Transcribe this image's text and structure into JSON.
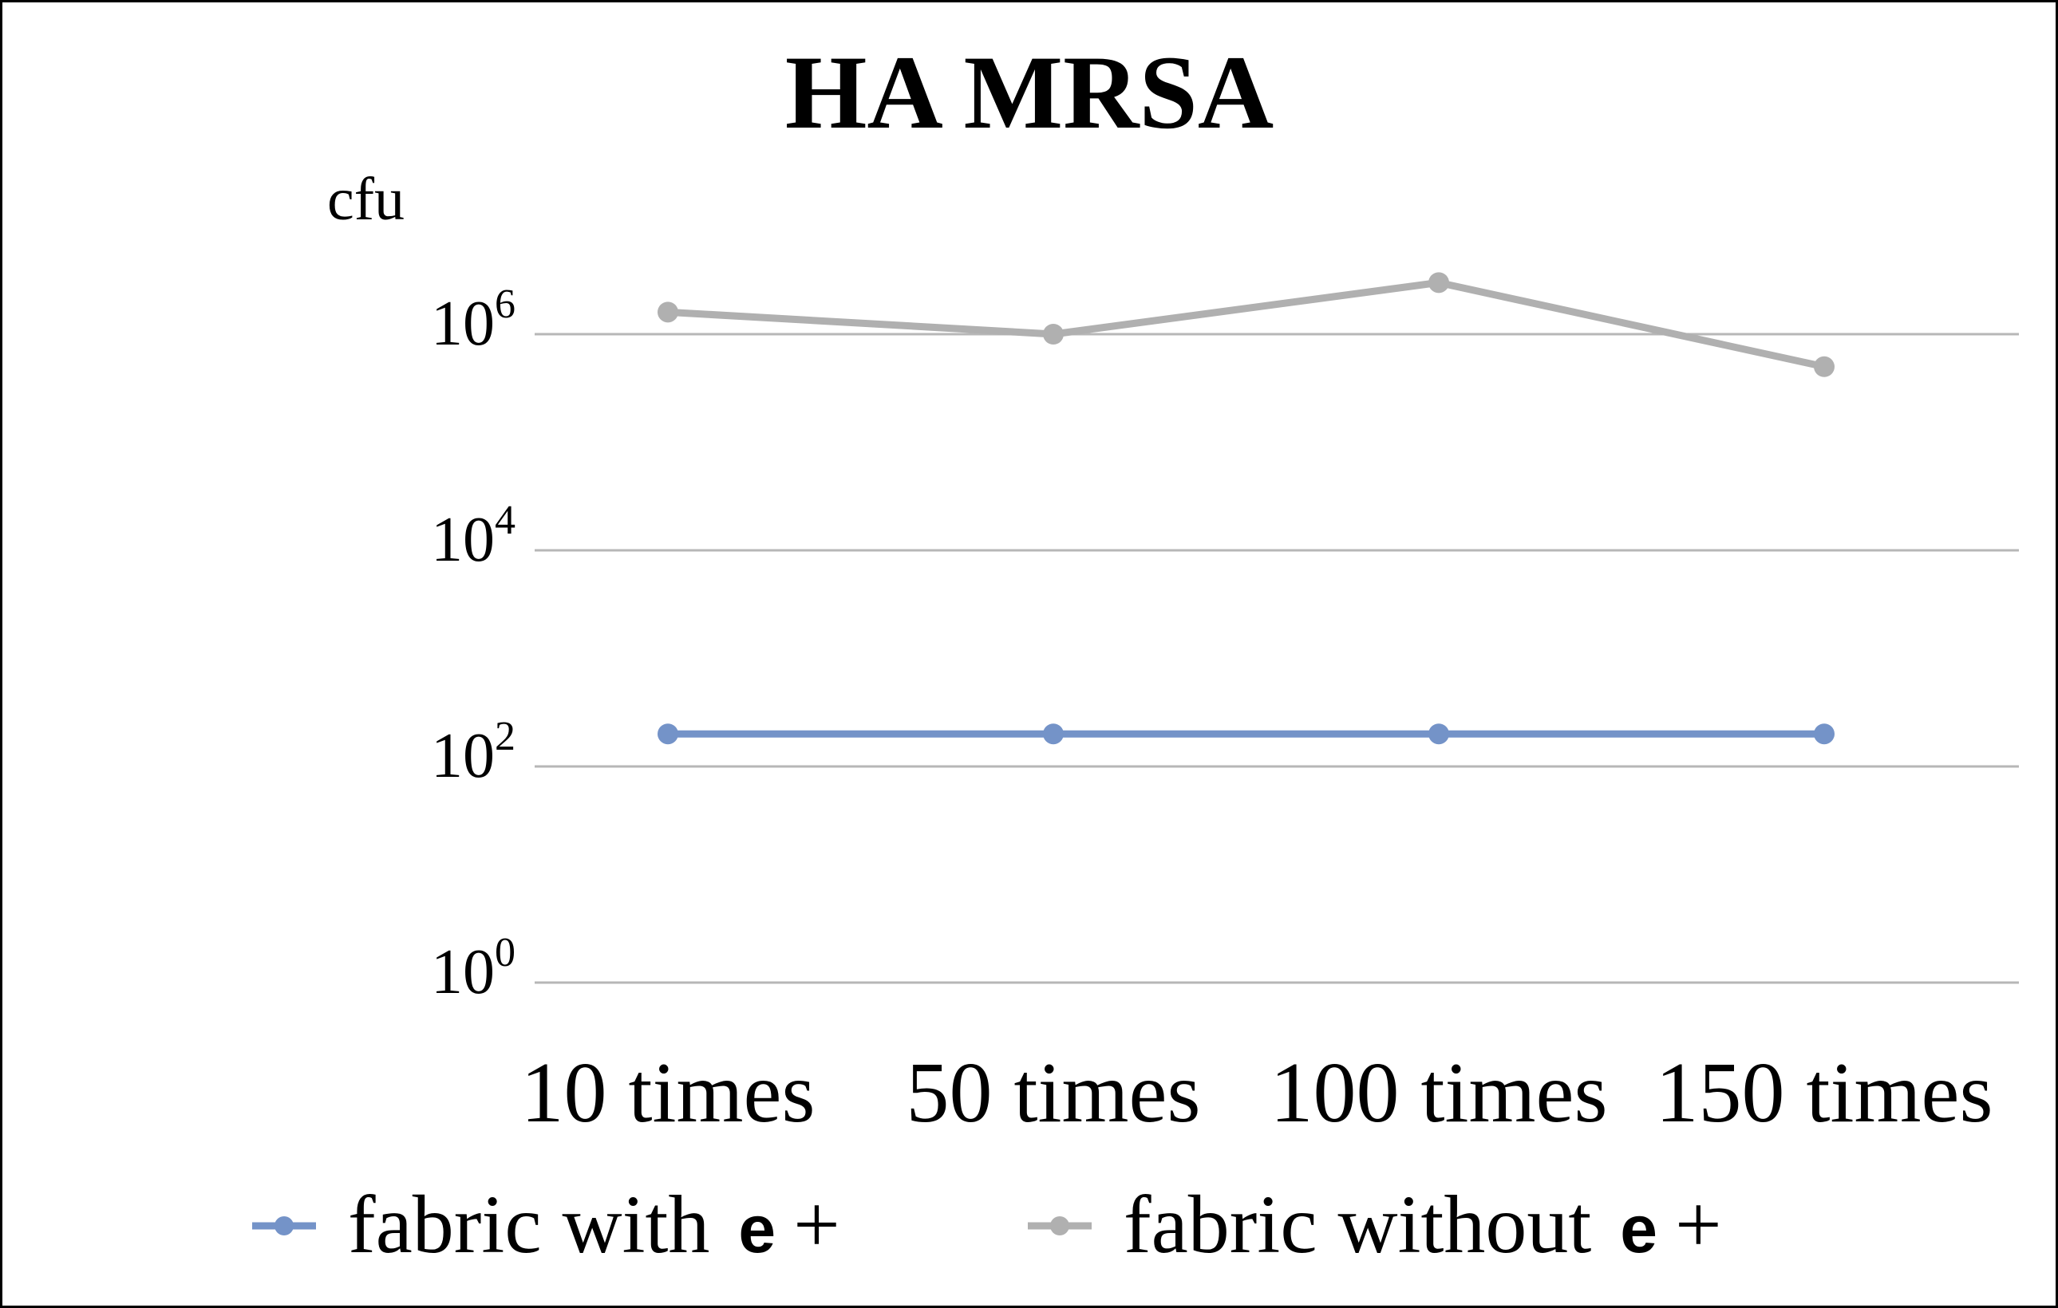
{
  "chart_data": {
    "type": "line",
    "title": "HA MRSA",
    "ylabel": "cfu",
    "y_scale": "log10",
    "ylim": [
      1,
      1000000
    ],
    "y_ticks": [
      {
        "base": "10",
        "exp": "0",
        "value": 1
      },
      {
        "base": "10",
        "exp": "2",
        "value": 100
      },
      {
        "base": "10",
        "exp": "4",
        "value": 10000
      },
      {
        "base": "10",
        "exp": "6",
        "value": 1000000
      }
    ],
    "categories": [
      "10 times",
      "50 times",
      "100 times",
      "150 times"
    ],
    "series": [
      {
        "name_main": "fabric with",
        "name_sym": "e",
        "name_tail": "+",
        "color": "#7493c8",
        "values": [
          200,
          200,
          200,
          200
        ]
      },
      {
        "name_main": "fabric without",
        "name_sym": "e",
        "name_tail": "+",
        "color": "#b0b0b0",
        "values": [
          1600000,
          1000000,
          3000000,
          500000
        ]
      }
    ],
    "grid": true,
    "grid_color": "#b7b7b7",
    "legend_position": "bottom"
  }
}
